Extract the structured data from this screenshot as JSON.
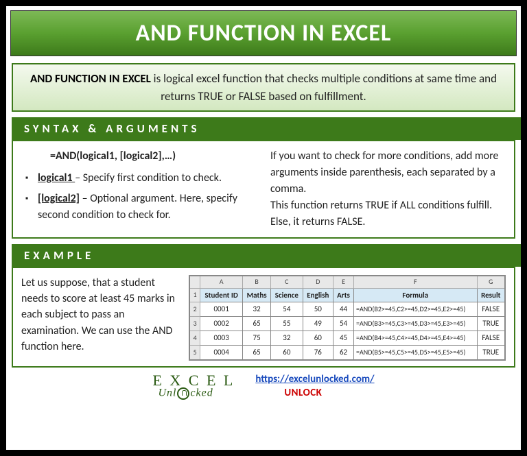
{
  "title": "AND FUNCTION IN EXCEL",
  "intro": {
    "lead": "AND FUNCTION IN EXCEL",
    "rest": " is logical excel function that checks multiple conditions at same time and returns TRUE or FALSE based on fulfillment."
  },
  "sections": {
    "syntax_label": "SYNTAX & ARGUMENTS",
    "example_label": "EXAMPLE"
  },
  "syntax": {
    "formula": "=AND(logical1, [logical2],…)",
    "args": [
      {
        "name": "logical1 ",
        "desc": "– Specify first condition to check."
      },
      {
        "name": "[logical2]",
        "desc": " – Optional argument. Here, specify second condition to check for."
      }
    ],
    "note1": "If you want to check for more conditions, add more arguments inside parenthesis, each separated by a comma.",
    "note2": "This function returns TRUE if ALL conditions fulfill. Else, it returns FALSE."
  },
  "example": {
    "text": "Let us suppose, that a student needs to score at least 45 marks in each subject to pass an examination. We can use the AND function here.",
    "col_letters": [
      "",
      "A",
      "B",
      "C",
      "D",
      "E",
      "F",
      "G"
    ],
    "headers": [
      "Student ID",
      "Maths",
      "Science",
      "English",
      "Arts",
      "Formula",
      "Result"
    ],
    "rows": [
      [
        "2",
        "0001",
        "32",
        "54",
        "50",
        "44",
        "=AND(B2>=45,C2>=45,D2>=45,E2>=45)",
        "FALSE"
      ],
      [
        "3",
        "0002",
        "65",
        "55",
        "49",
        "54",
        "=AND(B3>=45,C3>=45,D3>=45,E3>=45)",
        "TRUE"
      ],
      [
        "4",
        "0003",
        "75",
        "32",
        "60",
        "45",
        "=AND(B4>=45,C4>=45,D4>=45,E4>=45)",
        "FALSE"
      ],
      [
        "5",
        "0004",
        "65",
        "60",
        "76",
        "62",
        "=AND(B5>=45,C5>=45,D5>=45,E5>=45)",
        "TRUE"
      ]
    ]
  },
  "footer": {
    "logo_r1": "E X C E L",
    "logo_r2": "Unl  cked",
    "url": "https://excelunlocked.com/",
    "unlock": "UNLOCK"
  },
  "colors": {
    "green_dark": "#3d7a1a",
    "green_mid": "#5aa030",
    "green_light": "#7db956",
    "intro_bg_top": "#f4f9ee",
    "intro_bg_bot": "#d3e8c0",
    "link_blue": "#1a4bbd",
    "unlock_red": "#cc0000",
    "excel_header_bg": "#d6e9f5",
    "grid_header_bg": "#e8e8e8"
  }
}
